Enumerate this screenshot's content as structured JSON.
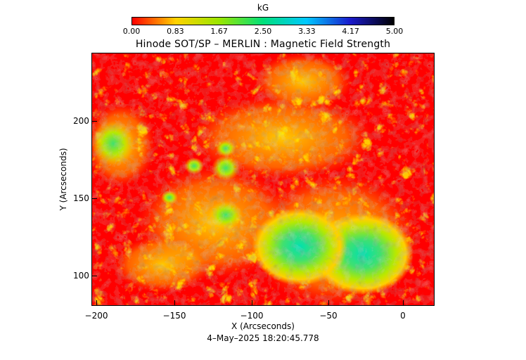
{
  "colorbar": {
    "unit": "kG",
    "ticks": [
      "0.00",
      "0.83",
      "1.67",
      "2.50",
      "3.33",
      "4.17",
      "5.00"
    ],
    "colors": [
      "#ff0000",
      "#ffd200",
      "#9ae600",
      "#00e07a",
      "#00c8ff",
      "#1a1acc",
      "#000000"
    ]
  },
  "title": "Hinode SOT/SP – MERLIN : Magnetic Field Strength",
  "axes": {
    "xlabel": "X (Arcseconds)",
    "ylabel": "Y (Arcseconds)",
    "xticks": [
      "−200",
      "−150",
      "−100",
      "−50",
      "0"
    ],
    "yticks": [
      "100",
      "150",
      "200"
    ]
  },
  "timestamp": "4–May–2025 18:20:45.778"
}
